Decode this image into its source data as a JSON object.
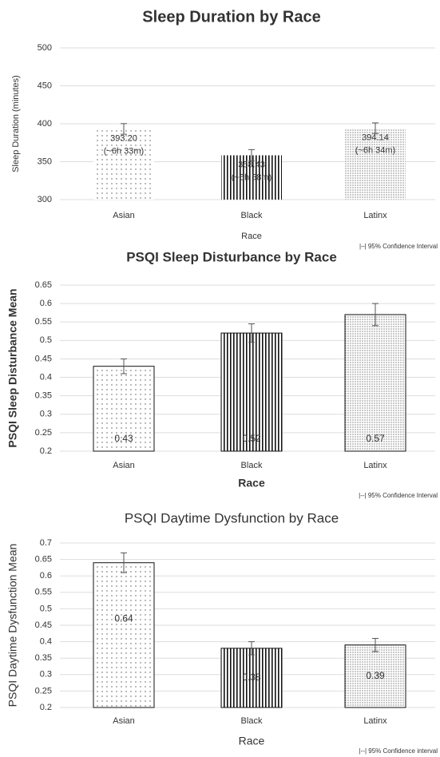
{
  "chart_data": [
    {
      "type": "bar",
      "title": "Sleep Duration by Race",
      "y_label": "Sleep Duration (minutes)",
      "x_label": "Race",
      "categories": [
        "Asian",
        "Black",
        "Latinx"
      ],
      "values": [
        393.2,
        358.43,
        394.14
      ],
      "value_labels": [
        [
          "393.20",
          "(~6h 33m)"
        ],
        [
          "358.43",
          "(~5h 58m)"
        ],
        [
          "394.14",
          "(~6h 34m)"
        ]
      ],
      "errors": [
        7,
        7.5,
        7
      ],
      "ylim": [
        300,
        500
      ],
      "yticks": [
        300,
        350,
        400,
        450,
        500
      ],
      "grid": true,
      "patterns": [
        "dots",
        "vertical-lines",
        "dense-dots"
      ],
      "annotation": "|–| 95% Confidence Interval"
    },
    {
      "type": "bar",
      "title": "PSQI Sleep Disturbance by Race",
      "y_label": "PSQI Sleep Disturbance Mean",
      "x_label": "Race",
      "categories": [
        "Asian",
        "Black",
        "Latinx"
      ],
      "values": [
        0.43,
        0.52,
        0.57
      ],
      "errors": [
        0.02,
        0.025,
        0.03
      ],
      "ylim": [
        0.2,
        0.65
      ],
      "yticks": [
        0.2,
        0.25,
        0.3,
        0.35,
        0.4,
        0.45,
        0.5,
        0.55,
        0.6,
        0.65
      ],
      "grid": true,
      "patterns": [
        "dots",
        "vertical-lines",
        "dense-dots"
      ],
      "annotation": "|--| 95% Confidence Interval"
    },
    {
      "type": "bar",
      "title": "PSQI Daytime Dysfunction by Race",
      "y_label": "PSQI Daytime Dysfunction Mean",
      "x_label": "Race",
      "categories": [
        "Asian",
        "Black",
        "Latinx"
      ],
      "values": [
        0.64,
        0.38,
        0.39
      ],
      "errors": [
        0.03,
        0.02,
        0.02
      ],
      "ylim": [
        0.2,
        0.7
      ],
      "yticks": [
        0.2,
        0.25,
        0.3,
        0.35,
        0.4,
        0.45,
        0.5,
        0.55,
        0.6,
        0.65,
        0.7
      ],
      "grid": true,
      "patterns": [
        "dots",
        "vertical-lines",
        "dense-dots"
      ],
      "annotation": "|--| 95% Confidence interval"
    }
  ]
}
